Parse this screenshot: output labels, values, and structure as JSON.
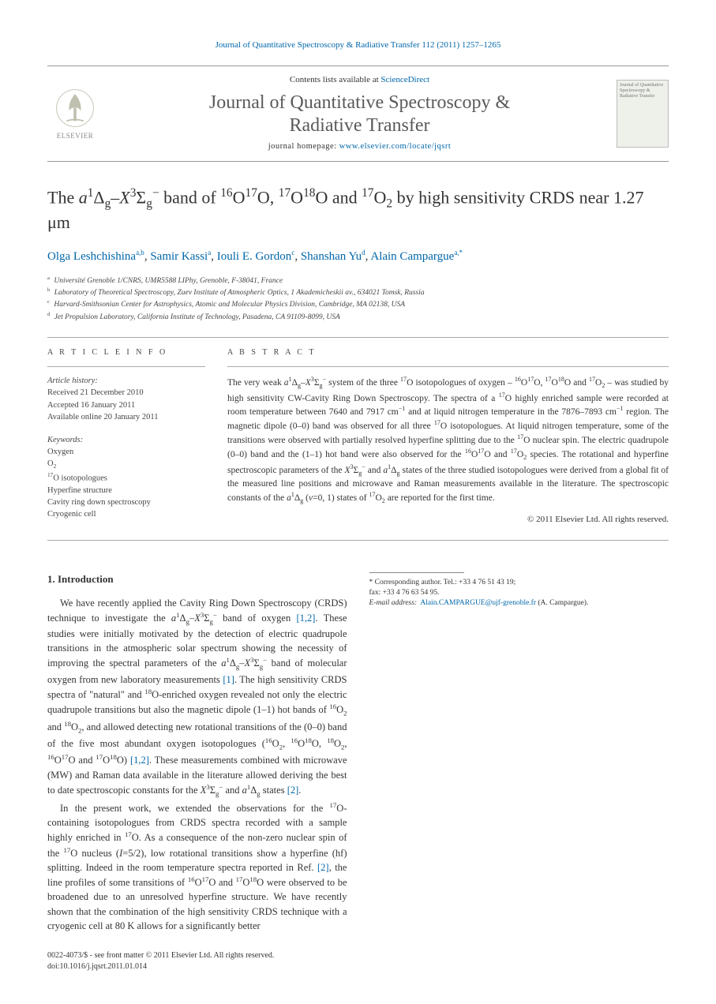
{
  "citation": "Journal of Quantitative Spectroscopy & Radiative Transfer 112 (2011) 1257–1265",
  "contents_prefix": "Contents lists available at ",
  "contents_link": "ScienceDirect",
  "journal_name_l1": "Journal of Quantitative Spectroscopy &",
  "journal_name_l2": "Radiative Transfer",
  "homepage_prefix": "journal homepage: ",
  "homepage_url": "www.elsevier.com/locate/jqsrt",
  "publisher_label": "ELSEVIER",
  "cover_text": "Journal of Quantitative Spectroscopy & Radiative Transfer",
  "title_html": "The <i>a</i><sup>1</sup>Δ<sub>g</sub>–<i>X</i><sup>3</sup>Σ<sub>g</sub><sup>−</sup> band of <sup>16</sup>O<sup>17</sup>O, <sup>17</sup>O<sup>18</sup>O and <sup>17</sup>O<sub>2</sub> by high sensitivity CRDS near 1.27 μm",
  "authors": [
    {
      "name": "Olga Leshchishina",
      "sup": "a,b"
    },
    {
      "name": "Samir Kassi",
      "sup": "a"
    },
    {
      "name": "Iouli E. Gordon",
      "sup": "c"
    },
    {
      "name": "Shanshan Yu",
      "sup": "d"
    },
    {
      "name": "Alain Campargue",
      "sup": "a,*"
    }
  ],
  "affiliations": [
    {
      "sup": "a",
      "text": "Université Grenoble 1/CNRS, UMR5588 LIPhy, Grenoble, F-38041, France"
    },
    {
      "sup": "b",
      "text": "Laboratory of Theoretical Spectroscopy, Zuev Institute of Atmospheric Optics, 1 Akademicheskii av., 634021 Tomsk, Russia"
    },
    {
      "sup": "c",
      "text": "Harvard-Smithsonian Center for Astrophysics, Atomic and Molecular Physics Division, Cambridge, MA 02138, USA"
    },
    {
      "sup": "d",
      "text": "Jet Propulsion Laboratory, California Institute of Technology, Pasadena, CA 91109-8099, USA"
    }
  ],
  "article_info_head": "A R T I C L E   I N F O",
  "abstract_head": "A B S T R A C T",
  "history_label": "Article history:",
  "history": [
    "Received 21 December 2010",
    "Accepted 16 January 2011",
    "Available online 20 January 2011"
  ],
  "keywords_label": "Keywords:",
  "keywords_html": [
    "Oxygen",
    "O<sub>2</sub>",
    "<sup>17</sup>O isotopologues",
    "Hyperfine structure",
    "Cavity ring down spectroscopy",
    "Cryogenic cell"
  ],
  "abstract_html": "The very weak <i>a</i><sup>1</sup>Δ<sub>g</sub>–<i>X</i><sup>3</sup>Σ<sub>g</sub><sup>−</sup> system of the three <sup>17</sup>O isotopologues of oxygen – <sup>16</sup>O<sup>17</sup>O, <sup>17</sup>O<sup>18</sup>O and <sup>17</sup>O<sub>2</sub> – was studied by high sensitivity CW-Cavity Ring Down Spectroscopy. The spectra of a <sup>17</sup>O highly enriched sample were recorded at room temperature between 7640 and 7917 cm<sup>−1</sup> and at liquid nitrogen temperature in the 7876–7893 cm<sup>−1</sup> region. The magnetic dipole (0–0) band was observed for all three <sup>17</sup>O isotopologues. At liquid nitrogen temperature, some of the transitions were observed with partially resolved hyperfine splitting due to the <sup>17</sup>O nuclear spin. The electric quadrupole (0–0) band and the (1–1) hot band were also observed for the <sup>16</sup>O<sup>17</sup>O and <sup>17</sup>O<sub>2</sub> species. The rotational and hyperfine spectroscopic parameters of the <i>X</i><sup>3</sup>Σ<sub>g</sub><sup>−</sup> and <i>a</i><sup>1</sup>Δ<sub>g</sub> states of the three studied isotopologues were derived from a global fit of the measured line positions and microwave and Raman measurements available in the literature. The spectroscopic constants of the <i>a</i><sup>1</sup>Δ<sub>g</sub> (<i>v</i>=0, 1) states of <sup>17</sup>O<sub>2</sub> are reported for the first time.",
  "copyright": "© 2011 Elsevier Ltd. All rights reserved.",
  "intro_head": "1. Introduction",
  "intro_paras_html": [
    "We have recently applied the Cavity Ring Down Spectroscopy (CRDS) technique to investigate the <i>a</i><sup>1</sup>Δ<sub>g</sub>–<i>X</i><sup>3</sup>Σ<sub>g</sub><sup>−</sup> band of oxygen <a>[1,2]</a>. These studies were initially motivated by the detection of electric quadrupole transitions in the atmospheric solar spectrum showing the necessity of improving the spectral parameters of the <i>a</i><sup>1</sup>Δ<sub>g</sub>–<i>X</i><sup>3</sup>Σ<sub>g</sub><sup>−</sup> band of molecular oxygen from new laboratory measurements <a>[1]</a>. The high sensitivity CRDS spectra of \"natural\" and <sup>18</sup>O-enriched oxygen revealed not only the electric quadrupole transitions but also the magnetic dipole (1–1) hot bands of <sup>16</sup>O<sub>2</sub> and <sup>18</sup>O<sub>2</sub>, and allowed detecting new rotational transitions of the (0–0) band of the five most abundant oxygen isotopologues (<sup>16</sup>O<sub>2</sub>, <sup>16</sup>O<sup>18</sup>O, <sup>18</sup>O<sub>2</sub>, <sup>16</sup>O<sup>17</sup>O and <sup>17</sup>O<sup>18</sup>O) <a>[1,2]</a>. These measurements combined with microwave (MW) and Raman data available in the literature allowed deriving the best to date spectroscopic constants for the <i>X</i><sup>3</sup>Σ<sub>g</sub><sup>−</sup> and <i>a</i><sup>1</sup>Δ<sub>g</sub> states <a>[2]</a>.",
    "In the present work, we extended the observations for the <sup>17</sup>O-containing isotopologues from CRDS spectra recorded with a sample highly enriched in <sup>17</sup>O. As a consequence of the non-zero nuclear spin of the <sup>17</sup>O nucleus (<i>I</i>=5/2), low rotational transitions show a hyperfine (hf) splitting. Indeed in the room temperature spectra reported in Ref. <a>[2]</a>, the line profiles of some transitions of <sup>16</sup>O<sup>17</sup>O and <sup>17</sup>O<sup>18</sup>O were observed to be broadened due to an unresolved hyperfine structure. We have recently shown that the combination of the high sensitivity CRDS technique with a cryogenic cell at 80 K allows for a significantly better"
  ],
  "corr_label": "* Corresponding author. Tel.: +33 4 76 51 43 19;",
  "corr_fax": "fax: +33 4 76 63 54 95.",
  "email_label": "E-mail address:",
  "email": "Alain.CAMPARGUE@ujf-grenoble.fr",
  "email_who": "(A. Campargue).",
  "footer_l1": "0022-4073/$ - see front matter © 2011 Elsevier Ltd. All rights reserved.",
  "footer_l2": "doi:10.1016/j.jqsrt.2011.01.014",
  "colors": {
    "link": "#0066aa",
    "text": "#333333",
    "rule": "#999999"
  }
}
